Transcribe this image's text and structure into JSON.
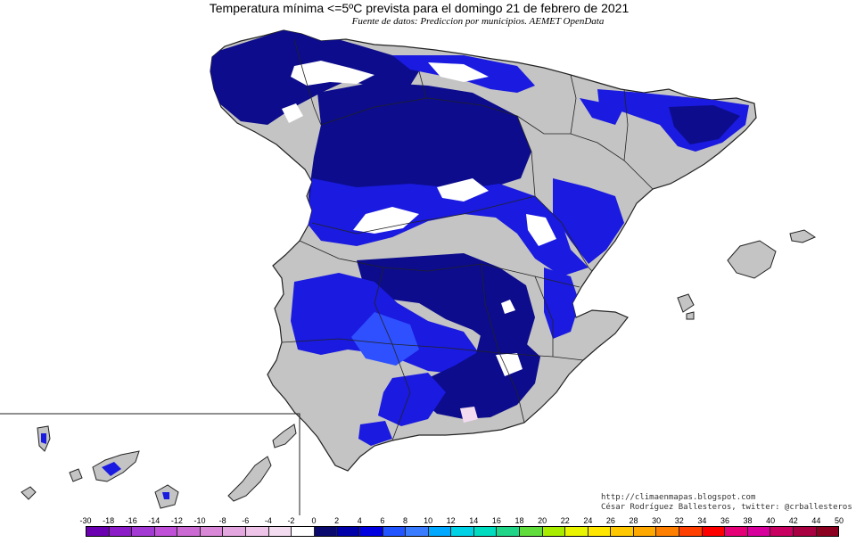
{
  "title": "Temperatura mínima <=5ºC prevista para el domingo 21 de febrero de 2021",
  "subtitle": "Fuente de datos: Prediccion por municipios. AEMET OpenData",
  "credits": {
    "url": "http://climaenmapas.blogspot.com",
    "author": "César Rodríguez Ballesteros, twitter: @crballesteros"
  },
  "colors": {
    "land": "#c4c4c4",
    "border": "#222222",
    "cold_dark": "#0c0c8c",
    "cold_blue": "#1a1ae0",
    "cold_light": "#2e50ff",
    "snow": "#ffffff"
  },
  "legend": {
    "ticks": [
      "-30",
      "-18",
      "-16",
      "-14",
      "-12",
      "-10",
      "-8",
      "-6",
      "-4",
      "-2",
      "0",
      "2",
      "4",
      "6",
      "8",
      "10",
      "12",
      "14",
      "16",
      "18",
      "20",
      "22",
      "24",
      "26",
      "28",
      "30",
      "32",
      "34",
      "36",
      "38",
      "40",
      "42",
      "44",
      "50"
    ],
    "swatches": [
      "#6a00b0",
      "#8b1cc8",
      "#a43ad4",
      "#c050d8",
      "#cc6ad4",
      "#d888d6",
      "#e4a6de",
      "#eec4e8",
      "#f4dcf0",
      "#ffffff",
      "#0a0a6e",
      "#0000a8",
      "#0000e0",
      "#2255ff",
      "#3a7cff",
      "#00a8ff",
      "#00d2e6",
      "#00dcc0",
      "#20d488",
      "#60dc3c",
      "#a8ec00",
      "#e8f400",
      "#ffe600",
      "#ffc800",
      "#ffa800",
      "#ff8000",
      "#ff4000",
      "#ff0000",
      "#e60078",
      "#d8009c",
      "#c80060",
      "#a80040",
      "#8c0020"
    ]
  }
}
